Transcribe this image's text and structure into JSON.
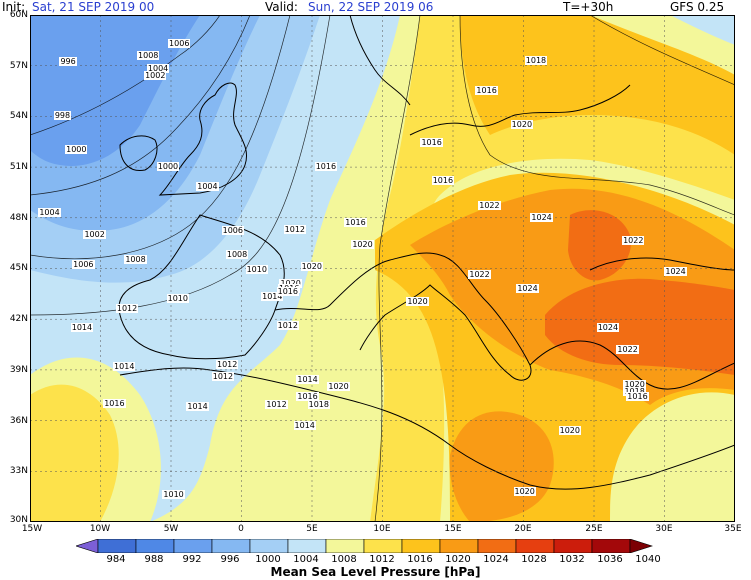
{
  "header": {
    "init_label": "Init:",
    "init_value": "Sat, 21 SEP 2019  00",
    "valid_label": "Valid:",
    "valid_value": "Sun, 22 SEP 2019  06",
    "lead_time": "T=+30h",
    "model": "GFS 0.25"
  },
  "colors": {
    "text_accent": "#2a3fd0",
    "land": "#000000"
  },
  "axes": {
    "lat_labels": [
      "60N",
      "57N",
      "54N",
      "51N",
      "48N",
      "45N",
      "42N",
      "39N",
      "36N",
      "33N",
      "30N"
    ],
    "lon_labels": [
      "15W",
      "10W",
      "5W",
      "0",
      "5E",
      "10E",
      "15E",
      "20E",
      "25E",
      "30E",
      "35E"
    ]
  },
  "colorbar": {
    "title": "Mean Sea Level Pressure [hPa]",
    "levels": [
      "984",
      "988",
      "992",
      "996",
      "1000",
      "1004",
      "1008",
      "1012",
      "1016",
      "1020",
      "1024",
      "1028",
      "1032",
      "1036",
      "1040"
    ],
    "colors": [
      "#7c5fd6",
      "#3f6fd6",
      "#4f88e6",
      "#6aa0ee",
      "#85b8f2",
      "#a4cff5",
      "#c3e4f7",
      "#f3f79a",
      "#fde24b",
      "#fdc31c",
      "#f99b15",
      "#f26d14",
      "#e63f10",
      "#cc1d0c",
      "#a3080a",
      "#7c0004"
    ]
  },
  "map": {
    "isobar_labels": [
      {
        "text": "996",
        "lon": -12.2,
        "lat": 57.2
      },
      {
        "text": "998",
        "lon": -12.6,
        "lat": 54.0
      },
      {
        "text": "1000",
        "lon": -11.8,
        "lat": 52.0
      },
      {
        "text": "1004",
        "lon": -13.7,
        "lat": 48.3
      },
      {
        "text": "1002",
        "lon": -10.5,
        "lat": 47.0
      },
      {
        "text": "1008",
        "lon": -7.6,
        "lat": 45.5
      },
      {
        "text": "1006",
        "lon": -11.3,
        "lat": 45.2
      },
      {
        "text": "1012",
        "lon": -8.2,
        "lat": 42.6
      },
      {
        "text": "1010",
        "lon": -4.6,
        "lat": 43.2
      },
      {
        "text": "1014",
        "lon": -11.4,
        "lat": 41.5
      },
      {
        "text": "1014",
        "lon": -8.4,
        "lat": 39.2
      },
      {
        "text": "1016",
        "lon": -9.1,
        "lat": 37.0
      },
      {
        "text": "1014",
        "lon": -3.2,
        "lat": 36.8
      },
      {
        "text": "1012",
        "lon": 2.4,
        "lat": 36.9
      },
      {
        "text": "1010",
        "lon": -4.9,
        "lat": 31.6
      },
      {
        "text": "1014",
        "lon": 4.4,
        "lat": 35.7
      },
      {
        "text": "1008",
        "lon": -6.7,
        "lat": 57.6
      },
      {
        "text": "1006",
        "lon": -4.5,
        "lat": 58.3
      },
      {
        "text": "1004",
        "lon": -6.0,
        "lat": 56.8
      },
      {
        "text": "1000",
        "lon": -5.3,
        "lat": 51.0
      },
      {
        "text": "1002",
        "lon": -6.2,
        "lat": 56.4
      },
      {
        "text": "1004",
        "lon": -2.5,
        "lat": 49.8
      },
      {
        "text": "1006",
        "lon": -0.7,
        "lat": 47.2
      },
      {
        "text": "1008",
        "lon": -0.4,
        "lat": 45.8
      },
      {
        "text": "1010",
        "lon": 1.0,
        "lat": 44.9
      },
      {
        "text": "1012",
        "lon": 3.7,
        "lat": 47.3
      },
      {
        "text": "1016",
        "lon": 5.9,
        "lat": 51.0
      },
      {
        "text": "1016",
        "lon": 8.0,
        "lat": 47.7
      },
      {
        "text": "1020",
        "lon": 8.5,
        "lat": 46.4
      },
      {
        "text": "1020",
        "lon": 4.9,
        "lat": 45.1
      },
      {
        "text": "1020",
        "lon": 3.4,
        "lat": 44.1
      },
      {
        "text": "1016",
        "lon": 3.3,
        "lat": 43.8
      },
      {
        "text": "1014",
        "lon": 2.1,
        "lat": 43.3
      },
      {
        "text": "1016",
        "lon": 3.2,
        "lat": 43.6
      },
      {
        "text": "1012",
        "lon": 3.2,
        "lat": 41.6
      },
      {
        "text": "1012",
        "lon": -1.1,
        "lat": 39.3
      },
      {
        "text": "1012",
        "lon": -1.4,
        "lat": 38.6
      },
      {
        "text": "1014",
        "lon": 4.6,
        "lat": 38.4
      },
      {
        "text": "1016",
        "lon": 4.6,
        "lat": 37.4
      },
      {
        "text": "1018",
        "lon": 5.4,
        "lat": 36.9
      },
      {
        "text": "1020",
        "lon": 6.8,
        "lat": 38.0
      },
      {
        "text": "1020",
        "lon": 12.4,
        "lat": 43.0
      },
      {
        "text": "1016",
        "lon": 13.4,
        "lat": 52.4
      },
      {
        "text": "1016",
        "lon": 14.2,
        "lat": 50.2
      },
      {
        "text": "1020",
        "lon": 19.8,
        "lat": 53.5
      },
      {
        "text": "1022",
        "lon": 17.5,
        "lat": 48.7
      },
      {
        "text": "1024",
        "lon": 21.2,
        "lat": 48.0
      },
      {
        "text": "1022",
        "lon": 27.7,
        "lat": 46.6
      },
      {
        "text": "1024",
        "lon": 30.7,
        "lat": 44.8
      },
      {
        "text": "1022",
        "lon": 16.8,
        "lat": 44.6
      },
      {
        "text": "1024",
        "lon": 20.2,
        "lat": 43.8
      },
      {
        "text": "1024",
        "lon": 25.9,
        "lat": 41.5
      },
      {
        "text": "1022",
        "lon": 27.3,
        "lat": 40.2
      },
      {
        "text": "1020",
        "lon": 27.8,
        "lat": 38.1
      },
      {
        "text": "1018",
        "lon": 27.8,
        "lat": 37.7
      },
      {
        "text": "1016",
        "lon": 28.0,
        "lat": 37.4
      },
      {
        "text": "1020",
        "lon": 23.2,
        "lat": 35.4
      },
      {
        "text": "1020",
        "lon": 20.0,
        "lat": 31.8
      },
      {
        "text": "1016",
        "lon": 17.3,
        "lat": 55.5
      },
      {
        "text": "1018",
        "lon": 20.8,
        "lat": 57.3
      }
    ]
  }
}
